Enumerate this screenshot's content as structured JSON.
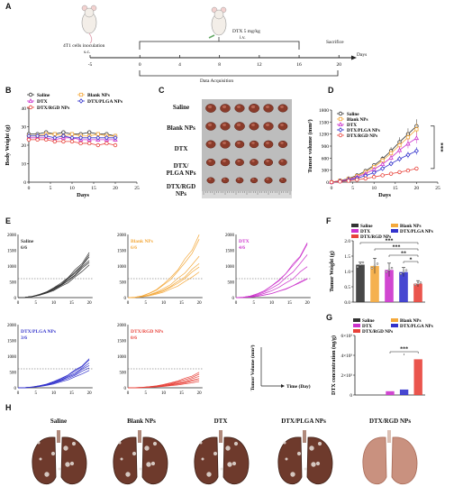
{
  "panels": [
    "A",
    "B",
    "C",
    "D",
    "E",
    "F",
    "G",
    "H"
  ],
  "timeline": {
    "ticks": [
      "-5",
      "0",
      "4",
      "8",
      "12",
      "16",
      "20"
    ],
    "axis_label": "Days",
    "inoculation": "4T1 cells inoculation",
    "route_sc": "s.c.",
    "dose": "DTX  5 mg/kg",
    "route_iv": "i.v.",
    "sacrifice": "Sacrifice",
    "acquisition": "Data Acquisition"
  },
  "groups": [
    "Saline",
    "Blank NPs",
    "DTX",
    "DTX/PLGA NPs",
    "DTX/RGD NPs"
  ],
  "colors": {
    "saline": "#333333",
    "blank": "#f4a93c",
    "dtx": "#cc33cc",
    "plga": "#3333cc",
    "rgd": "#e8423a"
  },
  "photo_rows": [
    "Saline",
    "Blank NPs",
    "DTX",
    "DTX/\nPLGA NPs",
    "DTX/RGD\nNPs"
  ],
  "e_panels": [
    {
      "name": "Saline",
      "ratio": "6/6",
      "color": "#333333"
    },
    {
      "name": "Blank NPs",
      "ratio": "6/6",
      "color": "#f4a93c"
    },
    {
      "name": "DTX",
      "ratio": "4/6",
      "color": "#cc33cc"
    },
    {
      "name": "DTX/PLGA NPs",
      "ratio": "3/6",
      "color": "#3333cc"
    },
    {
      "name": "DTX/RGD NPs",
      "ratio": "0/6",
      "color": "#e8423a"
    }
  ],
  "e_axis_note": {
    "y": "Tumor Volume (mm³)",
    "x": "Time (Day)"
  },
  "significance": {
    "d": "***",
    "f": [
      "***",
      "***",
      "**",
      "*"
    ],
    "g": "***"
  },
  "lung_labels": [
    "Saline",
    "Blank NPs",
    "DTX",
    "DTX/PLGA NPs",
    "DTX/RGD NPs"
  ],
  "chart_data": [
    {
      "id": "B",
      "type": "line",
      "xlabel": "Days",
      "ylabel": "Body Weight (g)",
      "xlim": [
        0,
        25
      ],
      "ylim": [
        0,
        40
      ],
      "xticks": [
        0,
        5,
        10,
        15,
        20,
        25
      ],
      "yticks": [
        0,
        10,
        20,
        30,
        40
      ],
      "x": [
        0,
        2,
        4,
        6,
        8,
        10,
        12,
        14,
        16,
        18,
        20
      ],
      "series": [
        {
          "name": "Saline",
          "values": [
            26,
            26,
            27,
            26,
            27,
            26,
            26,
            27,
            26,
            26,
            25
          ]
        },
        {
          "name": "Blank NPs",
          "values": [
            25,
            25,
            26,
            26,
            25,
            26,
            25,
            25,
            26,
            25,
            25
          ]
        },
        {
          "name": "DTX",
          "values": [
            24,
            24,
            24,
            23,
            24,
            24,
            23,
            23,
            23,
            23,
            23
          ]
        },
        {
          "name": "DTX/PLGA NPs",
          "values": [
            25,
            25,
            25,
            24,
            25,
            24,
            24,
            24,
            24,
            24,
            24
          ]
        },
        {
          "name": "DTX/RGD NPs",
          "values": [
            23,
            23,
            23,
            22,
            22,
            22,
            21,
            21,
            20,
            21,
            20
          ]
        }
      ]
    },
    {
      "id": "D",
      "type": "line",
      "xlabel": "Days",
      "ylabel": "Tumor volume (mm³)",
      "xlim": [
        0,
        25
      ],
      "ylim": [
        0,
        1800
      ],
      "xticks": [
        0,
        5,
        10,
        15,
        20,
        25
      ],
      "yticks": [
        0,
        300,
        600,
        900,
        1200,
        1500,
        1800
      ],
      "x": [
        0,
        2,
        4,
        6,
        8,
        10,
        12,
        14,
        16,
        18,
        20
      ],
      "series": [
        {
          "name": "Saline",
          "values": [
            0,
            40,
            90,
            170,
            280,
            420,
            580,
            780,
            1000,
            1200,
            1400
          ]
        },
        {
          "name": "Blank NPs",
          "values": [
            0,
            35,
            80,
            150,
            250,
            380,
            540,
            720,
            920,
            1120,
            1320
          ]
        },
        {
          "name": "DTX",
          "values": [
            0,
            30,
            70,
            130,
            210,
            320,
            450,
            610,
            800,
            960,
            1100
          ]
        },
        {
          "name": "DTX/PLGA NPs",
          "values": [
            0,
            25,
            55,
            100,
            160,
            240,
            340,
            460,
            580,
            680,
            780
          ]
        },
        {
          "name": "DTX/RGD NPs",
          "values": [
            0,
            15,
            35,
            60,
            90,
            130,
            170,
            210,
            250,
            290,
            340
          ]
        }
      ]
    },
    {
      "id": "F",
      "type": "bar",
      "ylabel": "Tumor Weight (g)",
      "ylim": [
        0,
        2.0
      ],
      "yticks": [
        0.0,
        0.5,
        1.0,
        1.5,
        2.0
      ],
      "categories": [
        "Saline",
        "Blank NPs",
        "DTX",
        "DTX/PLGA NPs",
        "DTX/RGD NPs"
      ],
      "values": [
        1.22,
        1.18,
        1.05,
        0.98,
        0.6
      ],
      "errors": [
        0.08,
        0.25,
        0.22,
        0.15,
        0.1
      ]
    },
    {
      "id": "G",
      "type": "bar",
      "ylabel": "DTX concentration (ng/g)",
      "ylim": [
        0,
        6000
      ],
      "yticks": [
        0,
        2000,
        4000,
        6000
      ],
      "yticklabels": [
        "0",
        "2×10³",
        "4×10³",
        "6×10³"
      ],
      "categories": [
        "Saline",
        "Blank NPs",
        "DTX",
        "DTX/PLGA NPs",
        "DTX/RGD NPs"
      ],
      "values": [
        0,
        0,
        380,
        550,
        3600
      ]
    }
  ]
}
